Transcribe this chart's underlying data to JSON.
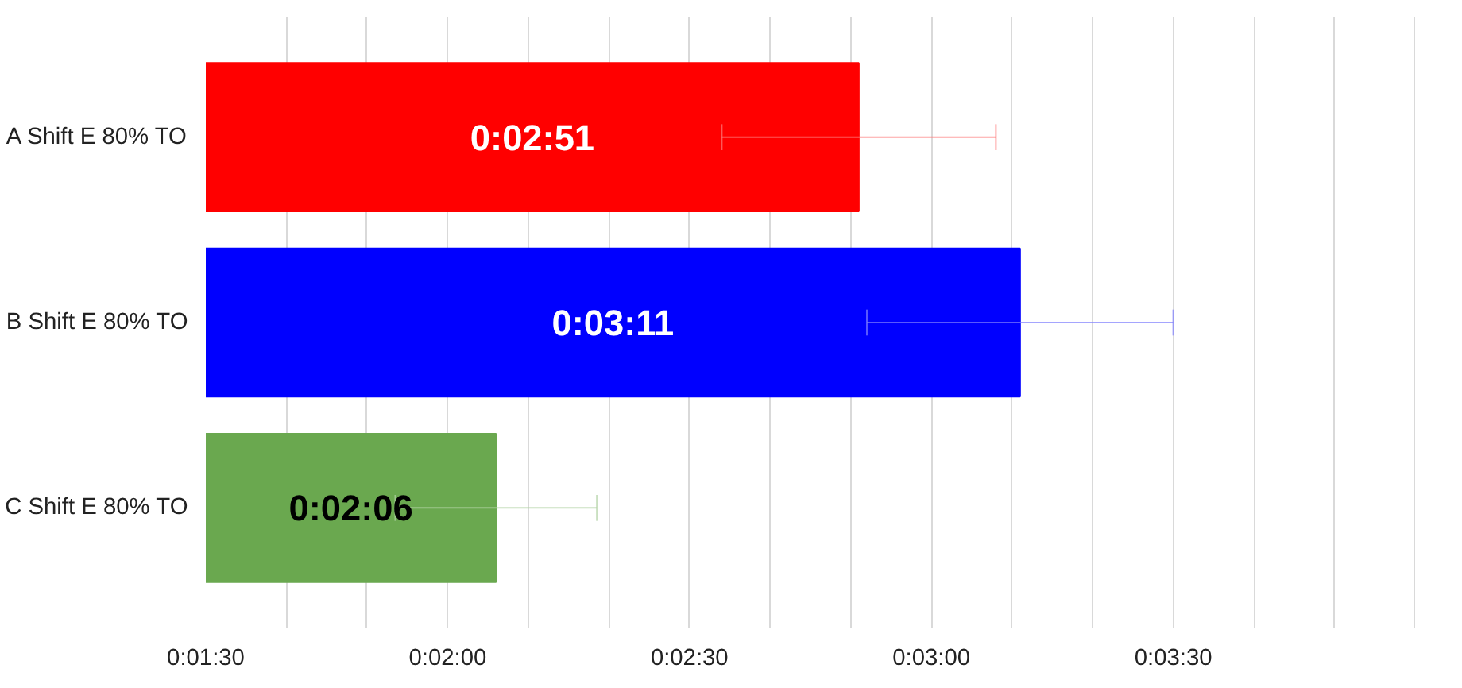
{
  "chart_data": {
    "type": "bar",
    "orientation": "horizontal",
    "categories": [
      "A Shift E 80% TO",
      "B Shift E 80% TO",
      "C Shift E 80% TO"
    ],
    "values": [
      171,
      191,
      126
    ],
    "colors": [
      "#ff0000",
      "#0000ff",
      "#6aa84f"
    ],
    "errors": [
      17,
      19,
      12.5
    ],
    "value_labels": [
      "0:02:51",
      "0:03:11",
      "0:02:06"
    ],
    "xlim": [
      90,
      240
    ],
    "xticks": [
      {
        "value": 90,
        "label": "0:01:30"
      },
      {
        "value": 100,
        "label": null
      },
      {
        "value": 110,
        "label": null
      },
      {
        "value": 120,
        "label": "0:02:00"
      },
      {
        "value": 130,
        "label": null
      },
      {
        "value": 140,
        "label": null
      },
      {
        "value": 150,
        "label": "0:02:30"
      },
      {
        "value": 160,
        "label": null
      },
      {
        "value": 170,
        "label": null
      },
      {
        "value": 180,
        "label": "0:03:00"
      },
      {
        "value": 190,
        "label": null
      },
      {
        "value": 200,
        "label": null
      },
      {
        "value": 210,
        "label": "0:03:30"
      },
      {
        "value": 220,
        "label": null
      },
      {
        "value": 230,
        "label": null
      },
      {
        "value": 240,
        "label": null
      }
    ],
    "grid": "x"
  }
}
